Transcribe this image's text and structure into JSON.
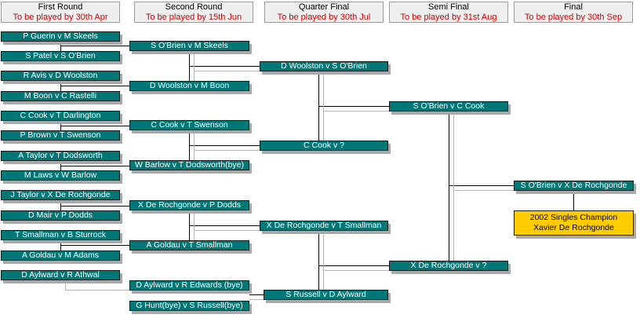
{
  "rounds": [
    {
      "title": "First Round",
      "deadline": "To be played by 30th Apr"
    },
    {
      "title": "Second Round",
      "deadline": "To be played by 15th Jun"
    },
    {
      "title": "Quarter Final",
      "deadline": "To be played by 30th Jul"
    },
    {
      "title": "Semi Final",
      "deadline": "To be played by 31st Aug"
    },
    {
      "title": "Final",
      "deadline": "To be played by 30th Sep"
    }
  ],
  "first_round": [
    "P Guerin v M Skeels",
    "S Patel v S O'Brien",
    "R Avis v D Woolston",
    "M Boon v C Rastelli",
    "C Cook v T Darlington",
    "P Brown v T Swenson",
    "A Taylor v T Dodsworth",
    "M Laws v W Barlow",
    "J Taylor v X De Rochgonde",
    "D Mair v P Dodds",
    "T Smallman v B Sturrock",
    "A Goldau v M Adams",
    "D Aylward v R Athwal"
  ],
  "second_round": [
    "S O'Brien v M Skeels",
    "D Woolston v M Boon",
    "C Cook v T Swenson",
    "W Barlow v T Dodsworth(bye)",
    "X De Rochgonde v  P Dodds",
    "A Goldau v T Smallman",
    "D Aylward v R Edwards (bye)",
    "G Hunt(bye) v S Russell(bye)"
  ],
  "quarter_final": [
    "D Woolston v S O'Brien",
    "C Cook v ?",
    "X De Rochgonde v T Smallman",
    "S Russell v D Aylward"
  ],
  "semi_final": [
    "S O'Brien v C Cook",
    "X De Rochgonde v ?"
  ],
  "final": [
    "S O'Brien v X De Rochgonde"
  ],
  "champion": {
    "line1": "2002 Singles Champion",
    "line2": "Xavier De Rochgonde"
  },
  "colors": {
    "match_box": "#007777",
    "champion_box": "#ffcc00",
    "header_bg": "#efefef",
    "deadline_text": "#cc0000"
  }
}
